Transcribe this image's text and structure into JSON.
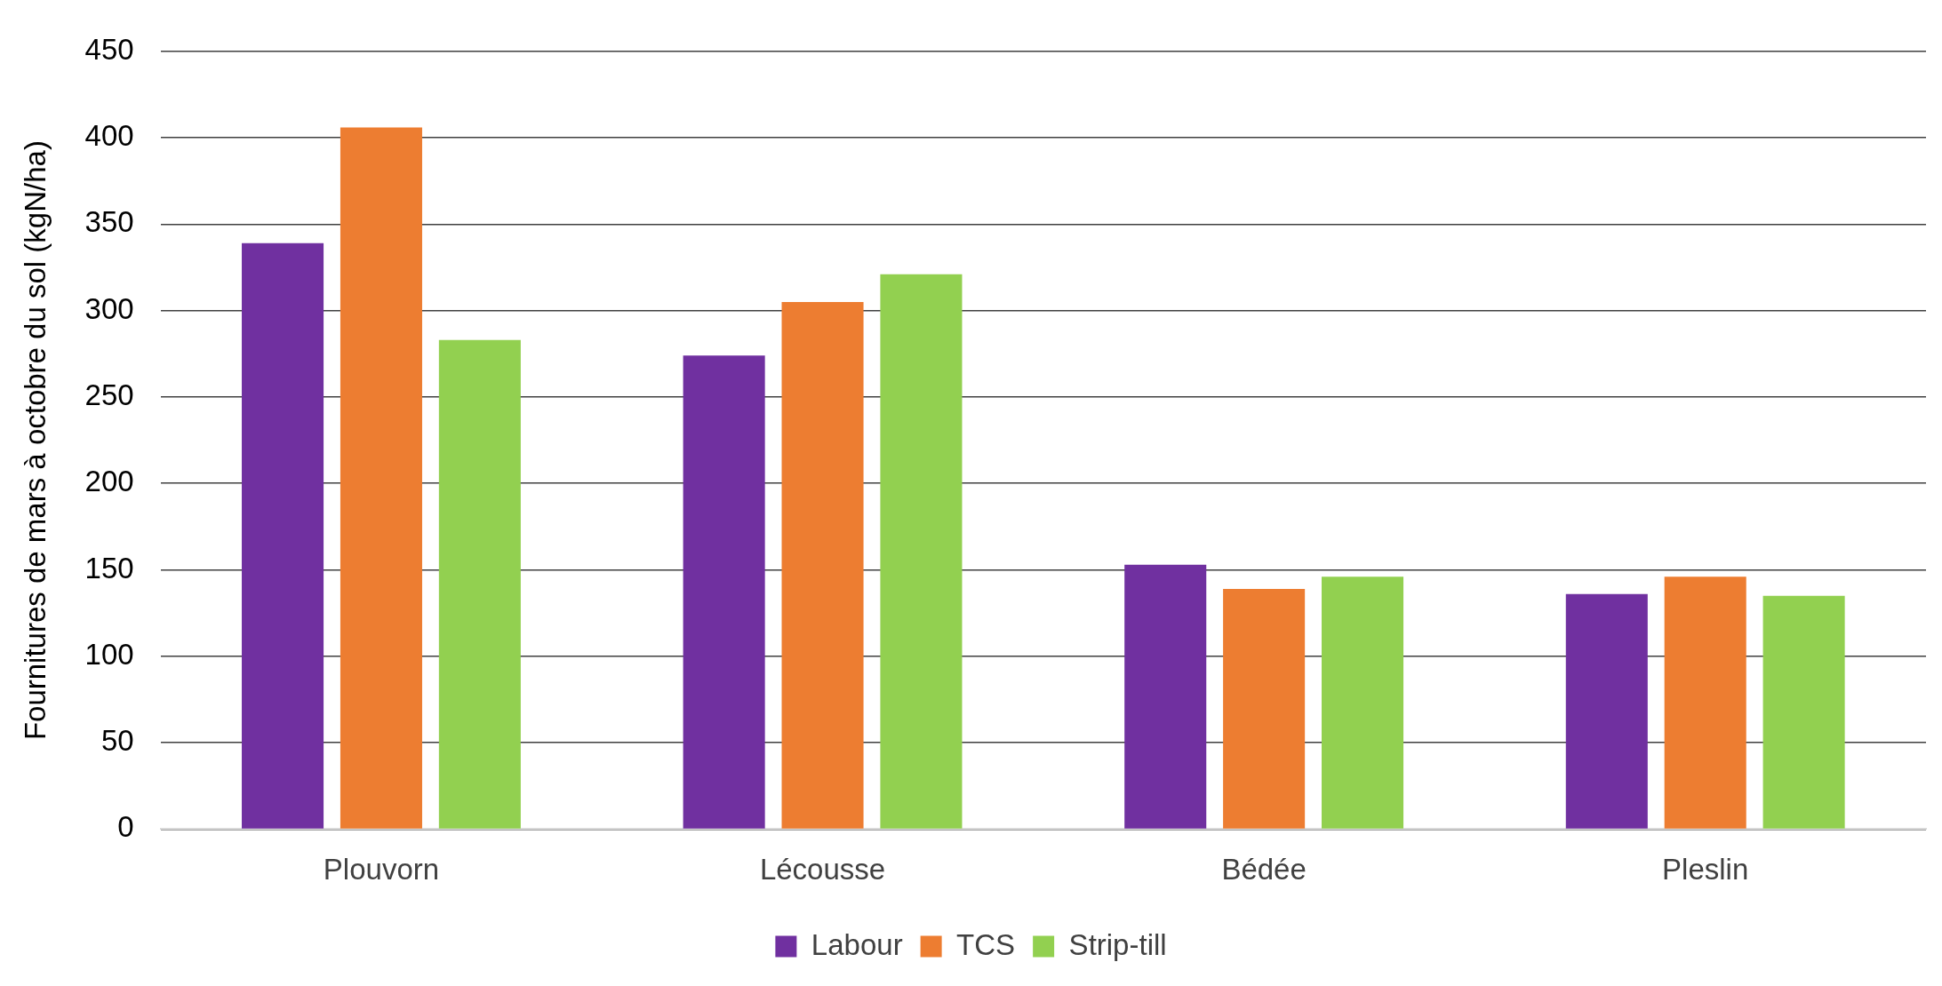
{
  "chart_data": {
    "type": "bar",
    "ylabel": "Fournitures de mars à octobre du sol (kgN/ha)",
    "categories": [
      "Plouvorn",
      "Lécousse",
      "Bédée",
      "Pleslin"
    ],
    "series": [
      {
        "name": "Labour",
        "color": "#7030a0",
        "values": [
          339,
          274,
          153,
          136
        ]
      },
      {
        "name": "TCS",
        "color": "#ed7d31",
        "values": [
          406,
          305,
          139,
          146
        ]
      },
      {
        "name": "Strip-till",
        "color": "#92d050",
        "values": [
          283,
          321,
          146,
          135
        ]
      }
    ],
    "ylim": [
      0,
      450
    ],
    "yticks": [
      0,
      50,
      100,
      150,
      200,
      250,
      300,
      350,
      400,
      450
    ],
    "grid": "y",
    "legend": "bottom"
  }
}
